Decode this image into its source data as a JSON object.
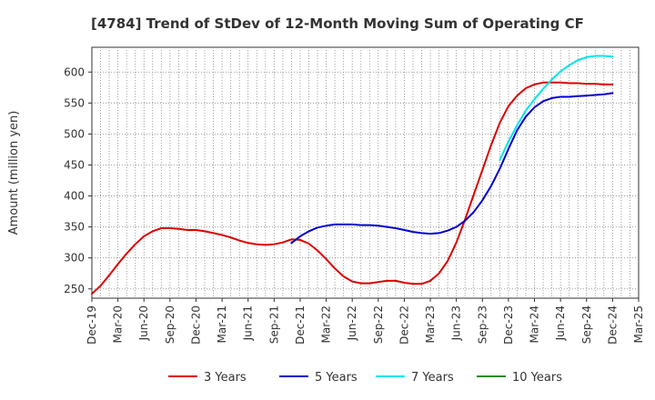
{
  "chart_data": {
    "type": "line",
    "title": "[4784]  Trend of StDev of 12-Month Moving Sum of Operating CF",
    "xlabel": "",
    "ylabel": "Amount (million yen)",
    "ylim": [
      235,
      640
    ],
    "yticks": [
      250,
      300,
      350,
      400,
      450,
      500,
      550,
      600
    ],
    "grid": true,
    "legend_position": "bottom",
    "x_tick_labels": [
      "Dec-19",
      "Mar-20",
      "Jun-20",
      "Sep-20",
      "Dec-20",
      "Mar-21",
      "Jun-21",
      "Sep-21",
      "Dec-21",
      "Mar-22",
      "Jun-22",
      "Sep-22",
      "Dec-22",
      "Mar-23",
      "Jun-23",
      "Sep-23",
      "Dec-23",
      "Mar-24",
      "Jun-24",
      "Sep-24",
      "Dec-24",
      "Mar-25"
    ],
    "series": [
      {
        "name": "3 Years",
        "color": "#dd0000",
        "points": [
          [
            "Dec-19",
            242
          ],
          [
            "Jan-20",
            255
          ],
          [
            "Feb-20",
            272
          ],
          [
            "Mar-20",
            290
          ],
          [
            "Apr-20",
            307
          ],
          [
            "May-20",
            322
          ],
          [
            "Jun-20",
            335
          ],
          [
            "Jul-20",
            343
          ],
          [
            "Aug-20",
            348
          ],
          [
            "Sep-20",
            348
          ],
          [
            "Oct-20",
            347
          ],
          [
            "Nov-20",
            345
          ],
          [
            "Dec-20",
            345
          ],
          [
            "Jan-21",
            343
          ],
          [
            "Feb-21",
            340
          ],
          [
            "Mar-21",
            337
          ],
          [
            "Apr-21",
            333
          ],
          [
            "May-21",
            328
          ],
          [
            "Jun-21",
            324
          ],
          [
            "Jul-21",
            322
          ],
          [
            "Aug-21",
            321
          ],
          [
            "Sep-21",
            322
          ],
          [
            "Oct-21",
            325
          ],
          [
            "Nov-21",
            330
          ],
          [
            "Dec-21",
            329
          ],
          [
            "Jan-22",
            323
          ],
          [
            "Feb-22",
            312
          ],
          [
            "Mar-22",
            298
          ],
          [
            "Apr-22",
            283
          ],
          [
            "May-22",
            270
          ],
          [
            "Jun-22",
            262
          ],
          [
            "Jul-22",
            259
          ],
          [
            "Aug-22",
            259
          ],
          [
            "Sep-22",
            261
          ],
          [
            "Oct-22",
            263
          ],
          [
            "Nov-22",
            263
          ],
          [
            "Dec-22",
            260
          ],
          [
            "Jan-23",
            258
          ],
          [
            "Feb-23",
            258
          ],
          [
            "Mar-23",
            263
          ],
          [
            "Apr-23",
            275
          ],
          [
            "May-23",
            295
          ],
          [
            "Jun-23",
            325
          ],
          [
            "Jul-23",
            362
          ],
          [
            "Aug-23",
            402
          ],
          [
            "Sep-23",
            442
          ],
          [
            "Oct-23",
            482
          ],
          [
            "Nov-23",
            518
          ],
          [
            "Dec-23",
            545
          ],
          [
            "Jan-24",
            562
          ],
          [
            "Feb-24",
            574
          ],
          [
            "Mar-24",
            580
          ],
          [
            "Apr-24",
            583
          ],
          [
            "May-24",
            583
          ],
          [
            "Jun-24",
            583
          ],
          [
            "Jul-24",
            582
          ],
          [
            "Aug-24",
            582
          ],
          [
            "Sep-24",
            581
          ],
          [
            "Oct-24",
            581
          ],
          [
            "Nov-24",
            580
          ],
          [
            "Dec-24",
            580
          ]
        ]
      },
      {
        "name": "5 Years",
        "color": "#0000cc",
        "points": [
          [
            "Nov-21",
            324
          ],
          [
            "Dec-21",
            335
          ],
          [
            "Jan-22",
            343
          ],
          [
            "Feb-22",
            349
          ],
          [
            "Mar-22",
            352
          ],
          [
            "Apr-22",
            354
          ],
          [
            "May-22",
            354
          ],
          [
            "Jun-22",
            354
          ],
          [
            "Jul-22",
            353
          ],
          [
            "Aug-22",
            353
          ],
          [
            "Sep-22",
            352
          ],
          [
            "Oct-22",
            350
          ],
          [
            "Nov-22",
            348
          ],
          [
            "Dec-22",
            345
          ],
          [
            "Jan-23",
            342
          ],
          [
            "Feb-23",
            340
          ],
          [
            "Mar-23",
            339
          ],
          [
            "Apr-23",
            340
          ],
          [
            "May-23",
            344
          ],
          [
            "Jun-23",
            350
          ],
          [
            "Jul-23",
            360
          ],
          [
            "Aug-23",
            374
          ],
          [
            "Sep-23",
            393
          ],
          [
            "Oct-23",
            416
          ],
          [
            "Nov-23",
            444
          ],
          [
            "Dec-23",
            476
          ],
          [
            "Jan-24",
            506
          ],
          [
            "Feb-24",
            528
          ],
          [
            "Mar-24",
            543
          ],
          [
            "Apr-24",
            553
          ],
          [
            "May-24",
            558
          ],
          [
            "Jun-24",
            560
          ],
          [
            "Jul-24",
            560
          ],
          [
            "Aug-24",
            561
          ],
          [
            "Sep-24",
            562
          ],
          [
            "Oct-24",
            563
          ],
          [
            "Nov-24",
            564
          ],
          [
            "Dec-24",
            566
          ]
        ]
      },
      {
        "name": "7 Years",
        "color": "#00e5e5",
        "points": [
          [
            "Nov-23",
            458
          ],
          [
            "Dec-23",
            488
          ],
          [
            "Jan-24",
            514
          ],
          [
            "Feb-24",
            538
          ],
          [
            "Mar-24",
            556
          ],
          [
            "Apr-24",
            573
          ],
          [
            "May-24",
            588
          ],
          [
            "Jun-24",
            601
          ],
          [
            "Jul-24",
            611
          ],
          [
            "Aug-24",
            619
          ],
          [
            "Sep-24",
            624
          ],
          [
            "Oct-24",
            626
          ],
          [
            "Nov-24",
            626
          ],
          [
            "Dec-24",
            625
          ]
        ]
      },
      {
        "name": "10 Years",
        "color": "#228b22",
        "points": []
      }
    ]
  }
}
